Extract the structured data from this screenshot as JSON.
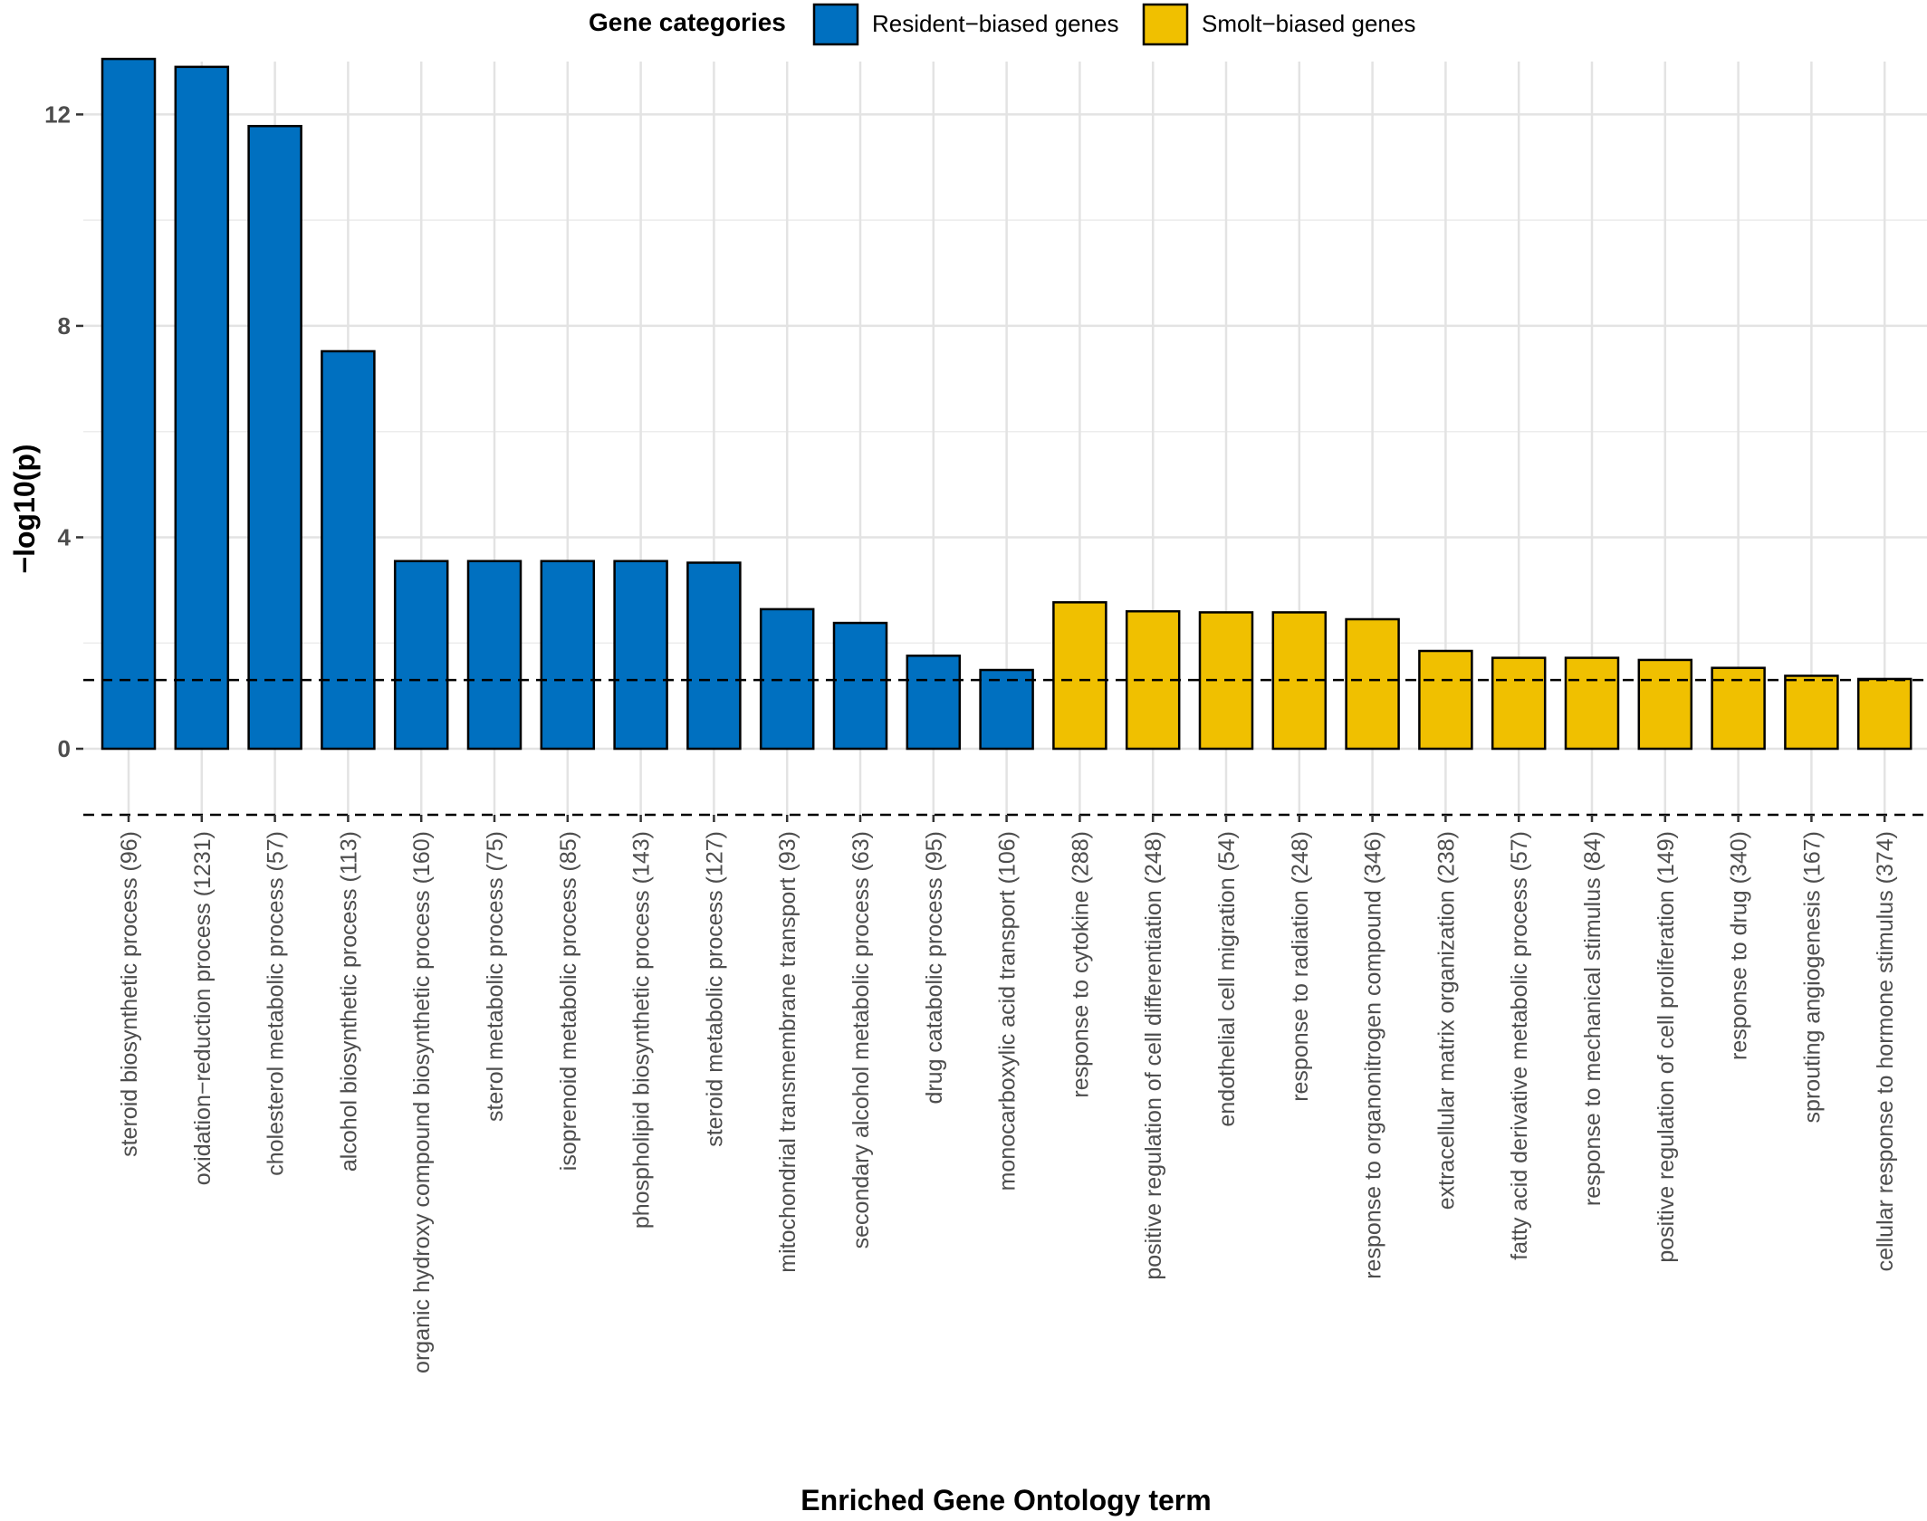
{
  "chart_data": {
    "type": "bar",
    "xlabel": "Enriched Gene Ontology term",
    "ylabel": "−log10(p)",
    "ylim": [
      -1.25,
      13
    ],
    "yticks": [
      0,
      4,
      8,
      12
    ],
    "grid": true,
    "threshold_lines": [
      1.3,
      -1.25
    ],
    "legend": {
      "title": "Gene categories",
      "position": "top",
      "entries": [
        {
          "label": "Resident−biased genes",
          "color": "#0070c0"
        },
        {
          "label": "Smolt−biased genes",
          "color": "#f0c000"
        }
      ]
    },
    "categories": [
      "steroid biosynthetic process (96)",
      "oxidation−reduction process (1231)",
      "cholesterol metabolic process (57)",
      "alcohol biosynthetic process (113)",
      "organic hydroxy compound biosynthetic process (160)",
      "sterol metabolic process (75)",
      "isoprenoid metabolic process (85)",
      "phospholipid biosynthetic process (143)",
      "steroid metabolic process (127)",
      "mitochondrial transmembrane transport (93)",
      "secondary alcohol metabolic process (63)",
      "drug catabolic process (95)",
      "monocarboxylic acid transport (106)",
      "response to cytokine (288)",
      "positive regulation of cell differentiation (248)",
      "endothelial cell migration (54)",
      "response to radiation (248)",
      "response to organonitrogen compound (346)",
      "extracellular matrix organization (238)",
      "fatty acid derivative metabolic process (57)",
      "response to mechanical stimulus (84)",
      "positive regulation of cell proliferation (149)",
      "response to drug (340)",
      "sprouting angiogenesis (167)",
      "cellular response to hormone stimulus (374)"
    ],
    "values": [
      13.05,
      12.9,
      11.78,
      7.52,
      3.55,
      3.55,
      3.55,
      3.55,
      3.52,
      2.64,
      2.38,
      1.76,
      1.49,
      2.77,
      2.6,
      2.58,
      2.58,
      2.45,
      1.85,
      1.72,
      1.72,
      1.68,
      1.53,
      1.38,
      1.32
    ],
    "groups": [
      "Resident−biased genes",
      "Resident−biased genes",
      "Resident−biased genes",
      "Resident−biased genes",
      "Resident−biased genes",
      "Resident−biased genes",
      "Resident−biased genes",
      "Resident−biased genes",
      "Resident−biased genes",
      "Resident−biased genes",
      "Resident−biased genes",
      "Resident−biased genes",
      "Resident−biased genes",
      "Smolt−biased genes",
      "Smolt−biased genes",
      "Smolt−biased genes",
      "Smolt−biased genes",
      "Smolt−biased genes",
      "Smolt−biased genes",
      "Smolt−biased genes",
      "Smolt−biased genes",
      "Smolt−biased genes",
      "Smolt−biased genes",
      "Smolt−biased genes",
      "Smolt−biased genes"
    ]
  }
}
